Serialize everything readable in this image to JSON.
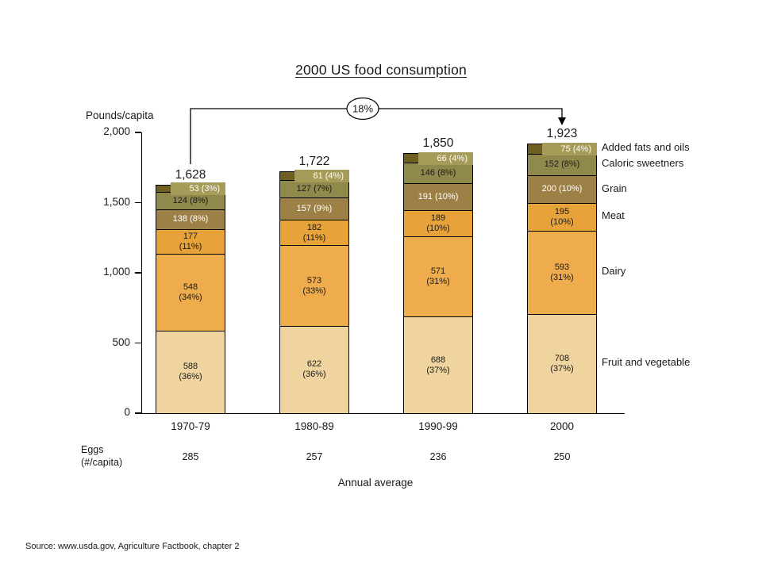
{
  "chart_data": {
    "type": "bar",
    "stacked": true,
    "title": "2000 US food consumption",
    "ylabel": "Pounds/capita",
    "xlabel": "Annual average",
    "ylim": [
      0,
      2000
    ],
    "grid": false,
    "legend_position": "right",
    "y_ticks": [
      {
        "label": "2,000",
        "value": 2000
      },
      {
        "label": "1,500",
        "value": 1500
      },
      {
        "label": "1,000",
        "value": 1000
      },
      {
        "label": "500",
        "value": 500
      },
      {
        "label": "0",
        "value": 0
      }
    ],
    "categories": [
      "1970-79",
      "1980-89",
      "1990-99",
      "2000"
    ],
    "totals": [
      "1,628",
      "1,722",
      "1,850",
      "1,923"
    ],
    "series": [
      {
        "name": "Fruit and vegetable",
        "color": "#F0D49F",
        "text_color": "#1a1a1a",
        "values": [
          588,
          622,
          688,
          708
        ],
        "labels": [
          [
            "588",
            "(36%)"
          ],
          [
            "622",
            "(36%)"
          ],
          [
            "688",
            "(37%)"
          ],
          [
            "708",
            "(37%)"
          ]
        ]
      },
      {
        "name": "Dairy",
        "color": "#EFAC4C",
        "text_color": "#1a1a1a",
        "values": [
          548,
          573,
          571,
          593
        ],
        "labels": [
          [
            "548",
            "(34%)"
          ],
          [
            "573",
            "(33%)"
          ],
          [
            "571",
            "(31%)"
          ],
          [
            "593",
            "(31%)"
          ]
        ]
      },
      {
        "name": "Meat",
        "color": "#E7A23A",
        "text_color": "#1a1a1a",
        "values": [
          177,
          182,
          189,
          195
        ],
        "labels": [
          [
            "177",
            "(11%)"
          ],
          [
            "182",
            "(11%)"
          ],
          [
            "189",
            "(10%)"
          ],
          [
            "195",
            "(10%)"
          ]
        ]
      },
      {
        "name": "Grain",
        "color": "#9D8045",
        "text_color": "#ffffff",
        "values": [
          138,
          157,
          191,
          200
        ],
        "labels": [
          [
            "138 (8%)"
          ],
          [
            "157 (9%)"
          ],
          [
            "191 (10%)"
          ],
          [
            "200 (10%)"
          ]
        ]
      },
      {
        "name": "Caloric sweetners",
        "color": "#8F894C",
        "text_color": "#1a1a1a",
        "values": [
          124,
          127,
          146,
          152
        ],
        "labels": [
          [
            "124 (8%)"
          ],
          [
            "127 (7%)"
          ],
          [
            "146 (8%)"
          ],
          [
            "152 (8%)"
          ]
        ]
      },
      {
        "name": "Added fats and oils",
        "color": "#6E5F21",
        "text_color": "#ffffff",
        "label_bg": "#A49C58",
        "values": [
          53,
          61,
          66,
          75
        ],
        "labels": [
          [
            "53 (3%)"
          ],
          [
            "61 (4%)"
          ],
          [
            "66 (4%)"
          ],
          [
            "75 (4%)"
          ]
        ]
      }
    ],
    "annotation": {
      "label": "18%"
    },
    "eggs": {
      "label_lines": [
        "Eggs",
        "(#/capita)"
      ],
      "values": [
        "285",
        "257",
        "236",
        "250"
      ]
    }
  },
  "source": "Source: www.usda.gov, Agriculture Factbook, chapter 2"
}
